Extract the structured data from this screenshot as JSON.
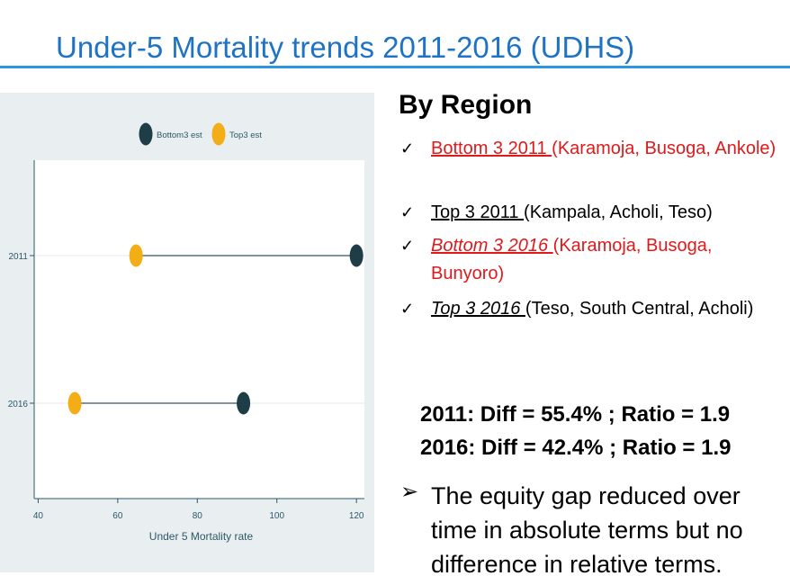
{
  "slide": {
    "title": "Under-5 Mortality trends 2011-2016 (UDHS)"
  },
  "chart_data": {
    "type": "dot",
    "categories": [
      "2011",
      "2016"
    ],
    "series": [
      {
        "name": "Bottom3 est",
        "color": "#1e3d47",
        "values": [
          120,
          91.6
        ]
      },
      {
        "name": "Top3 est",
        "color": "#f3ad16",
        "values": [
          64.6,
          49.2
        ]
      }
    ],
    "xlabel": "Under 5 Mortality rate",
    "xticks": [
      40,
      60,
      80,
      100,
      120
    ],
    "xlim": [
      39,
      122
    ],
    "legend_position": "top",
    "grid": true
  },
  "right_panel": {
    "heading": "By Region",
    "check_icon": "✓",
    "bullets": [
      {
        "link": "Bottom 3  2011 ",
        "rest": "(Karamoja, Busoga, Ankole)",
        "color": "red",
        "italic": false
      },
      {
        "link": "Top 3  2011 ",
        "rest": "(Kampala, Acholi, Teso)",
        "color": "black",
        "italic": false
      },
      {
        "link": "Bottom 3  2016 ",
        "rest": "(Karamoja, Busoga, Bunyoro)",
        "color": "red",
        "italic": true
      },
      {
        "link": " Top 3  2016 ",
        "rest": "(Teso, South Central, Acholi)",
        "color": "black",
        "italic": true
      }
    ],
    "stat_2011": "2011: Diff = 55.4% ; Ratio = 1.9",
    "stat_2016": "2016: Diff = 42.4% ; Ratio = 1.9",
    "arrow_icon": "➢",
    "conclusion": "The equity gap reduced over time in absolute terms but no difference in relative terms."
  }
}
